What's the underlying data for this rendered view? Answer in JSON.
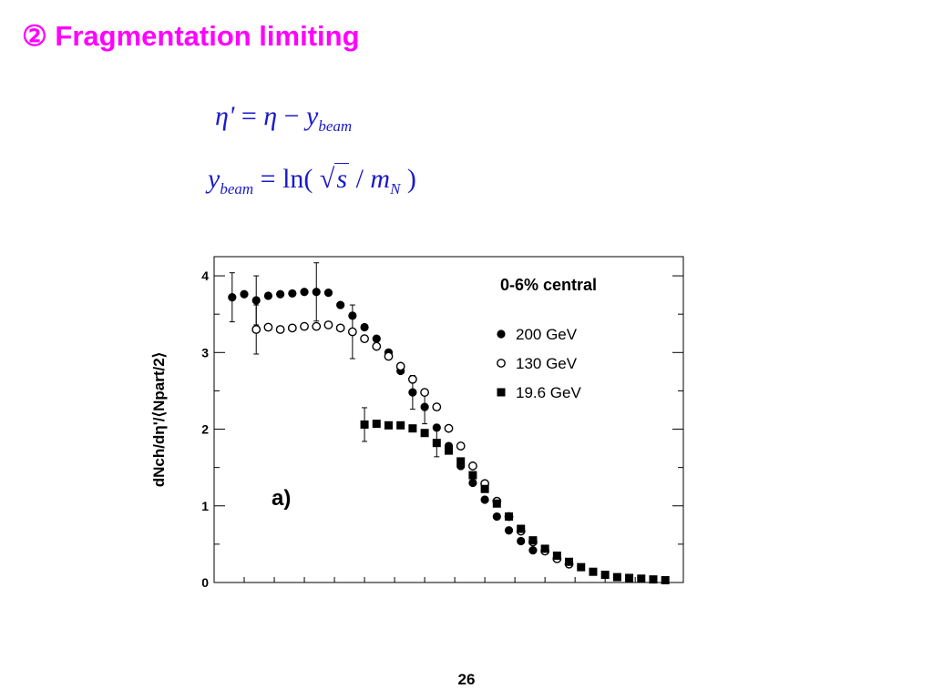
{
  "title": "② Fragmentation limiting",
  "formulas": {
    "f1": {
      "lhs": "η'",
      "eq": "=",
      "rhs_eta": "η",
      "minus": "−",
      "y": "y",
      "sub": "beam"
    },
    "f2": {
      "y": "y",
      "sub": "beam",
      "eq": "=",
      "ln": "ln(",
      "sqrt_sym": "√",
      "s": "s",
      "slash": "/",
      "m": "m",
      "msub": "N",
      "close": ")"
    }
  },
  "page_number": "26",
  "colors": {
    "title": "#ff00ff",
    "formula": "#1a1acc",
    "markers": "#000000"
  },
  "chart_data": {
    "type": "scatter",
    "title": "0-6% central",
    "ylabel": "dNch/dη'/⟨Npart/2⟩",
    "panel_label": "a)",
    "xlim": [
      -6.5,
      1.3
    ],
    "ylim": [
      0,
      4.25
    ],
    "yticks": [
      0,
      1,
      2,
      3,
      4
    ],
    "grid": false,
    "legend_position": "top-right",
    "series": [
      {
        "name": "200 GeV",
        "marker": "filled-circle",
        "points": [
          {
            "x": -6.2,
            "y": 3.72,
            "err": 0.32
          },
          {
            "x": -6.0,
            "y": 3.76
          },
          {
            "x": -5.8,
            "y": 3.68,
            "err": 0.32
          },
          {
            "x": -5.6,
            "y": 3.74
          },
          {
            "x": -5.4,
            "y": 3.76
          },
          {
            "x": -5.2,
            "y": 3.77
          },
          {
            "x": -5.0,
            "y": 3.79
          },
          {
            "x": -4.8,
            "y": 3.79,
            "err": 0.38
          },
          {
            "x": -4.6,
            "y": 3.78
          },
          {
            "x": -4.4,
            "y": 3.62
          },
          {
            "x": -4.2,
            "y": 3.48
          },
          {
            "x": -4.0,
            "y": 3.33
          },
          {
            "x": -3.8,
            "y": 3.18
          },
          {
            "x": -3.6,
            "y": 3.0
          },
          {
            "x": -3.4,
            "y": 2.76
          },
          {
            "x": -3.2,
            "y": 2.48,
            "err": 0.22
          },
          {
            "x": -3.0,
            "y": 2.29,
            "err": 0.22
          },
          {
            "x": -2.8,
            "y": 2.02
          },
          {
            "x": -2.6,
            "y": 1.78
          },
          {
            "x": -2.4,
            "y": 1.52
          },
          {
            "x": -2.2,
            "y": 1.3
          },
          {
            "x": -2.0,
            "y": 1.08
          },
          {
            "x": -1.8,
            "y": 0.86
          },
          {
            "x": -1.6,
            "y": 0.68
          },
          {
            "x": -1.4,
            "y": 0.54
          },
          {
            "x": -1.2,
            "y": 0.42
          }
        ]
      },
      {
        "name": "130 GeV",
        "marker": "open-circle",
        "points": [
          {
            "x": -5.8,
            "y": 3.3,
            "err": 0.32
          },
          {
            "x": -5.6,
            "y": 3.33
          },
          {
            "x": -5.4,
            "y": 3.3
          },
          {
            "x": -5.2,
            "y": 3.32
          },
          {
            "x": -5.0,
            "y": 3.34
          },
          {
            "x": -4.8,
            "y": 3.34
          },
          {
            "x": -4.6,
            "y": 3.36
          },
          {
            "x": -4.4,
            "y": 3.32
          },
          {
            "x": -4.2,
            "y": 3.27,
            "err": 0.35
          },
          {
            "x": -4.0,
            "y": 3.18
          },
          {
            "x": -3.8,
            "y": 3.08
          },
          {
            "x": -3.6,
            "y": 2.95
          },
          {
            "x": -3.4,
            "y": 2.82
          },
          {
            "x": -3.2,
            "y": 2.65
          },
          {
            "x": -3.0,
            "y": 2.48
          },
          {
            "x": -2.8,
            "y": 2.29
          },
          {
            "x": -2.6,
            "y": 2.01
          },
          {
            "x": -2.4,
            "y": 1.78
          },
          {
            "x": -2.2,
            "y": 1.52
          },
          {
            "x": -2.0,
            "y": 1.29
          },
          {
            "x": -1.8,
            "y": 1.06
          },
          {
            "x": -1.6,
            "y": 0.86
          },
          {
            "x": -1.4,
            "y": 0.67
          },
          {
            "x": -1.2,
            "y": 0.53
          },
          {
            "x": -1.0,
            "y": 0.41
          },
          {
            "x": -0.8,
            "y": 0.31
          },
          {
            "x": -0.6,
            "y": 0.24
          }
        ]
      },
      {
        "name": "19.6 GeV",
        "marker": "filled-square",
        "points": [
          {
            "x": -4.0,
            "y": 2.06,
            "err": 0.22
          },
          {
            "x": -3.8,
            "y": 2.07
          },
          {
            "x": -3.6,
            "y": 2.05
          },
          {
            "x": -3.4,
            "y": 2.05
          },
          {
            "x": -3.2,
            "y": 2.01
          },
          {
            "x": -3.0,
            "y": 1.95
          },
          {
            "x": -2.8,
            "y": 1.82,
            "err": 0.18
          },
          {
            "x": -2.6,
            "y": 1.72
          },
          {
            "x": -2.4,
            "y": 1.58
          },
          {
            "x": -2.2,
            "y": 1.4
          },
          {
            "x": -2.0,
            "y": 1.22
          },
          {
            "x": -1.8,
            "y": 1.03
          },
          {
            "x": -1.6,
            "y": 0.86
          },
          {
            "x": -1.4,
            "y": 0.7
          },
          {
            "x": -1.2,
            "y": 0.55
          },
          {
            "x": -1.0,
            "y": 0.44
          },
          {
            "x": -0.8,
            "y": 0.35
          },
          {
            "x": -0.6,
            "y": 0.27
          },
          {
            "x": -0.4,
            "y": 0.2
          },
          {
            "x": -0.2,
            "y": 0.14
          },
          {
            "x": 0.0,
            "y": 0.1
          },
          {
            "x": 0.2,
            "y": 0.07
          },
          {
            "x": 0.4,
            "y": 0.06
          },
          {
            "x": 0.6,
            "y": 0.05
          },
          {
            "x": 0.8,
            "y": 0.04
          },
          {
            "x": 1.0,
            "y": 0.03
          }
        ]
      }
    ]
  }
}
